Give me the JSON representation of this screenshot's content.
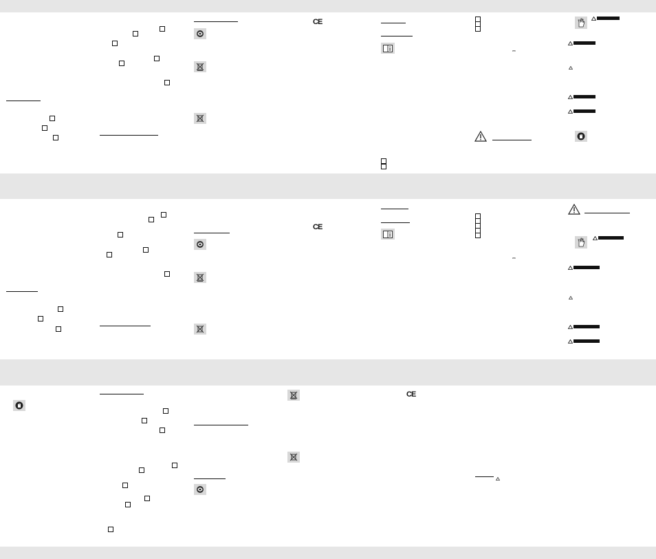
{
  "document": {
    "ce_mark": "CE",
    "icon_names": [
      "recycling-icon",
      "weee-bin-icon",
      "battery-bin-icon",
      "info-book-icon",
      "warning-triangle-icon",
      "hand-protection-icon",
      "glove-icon"
    ],
    "band_color": "#e6e6e6"
  }
}
